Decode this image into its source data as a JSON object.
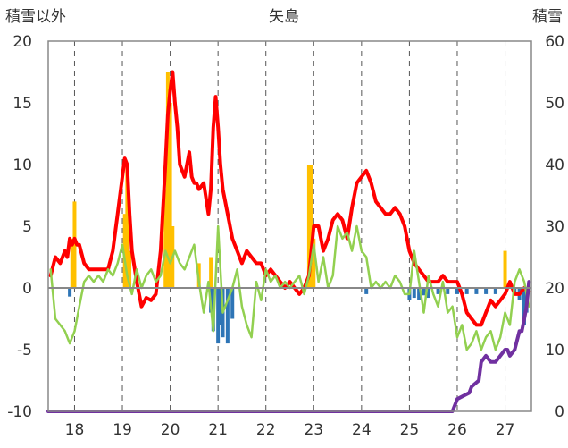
{
  "chart_data": {
    "type": "line",
    "title": "矢島",
    "left_axis_label": "積雪以外",
    "right_axis_label": "積雪",
    "x_ticks": [
      "18",
      "19",
      "20",
      "21",
      "22",
      "23",
      "24",
      "25",
      "26",
      "27"
    ],
    "x_tick_values": [
      18,
      19,
      20,
      21,
      22,
      23,
      24,
      25,
      26,
      27
    ],
    "xlim": [
      17.45,
      27.55
    ],
    "ylim_left": [
      -10,
      20
    ],
    "y_ticks_left": [
      "20",
      "15",
      "10",
      "5",
      "0",
      "-5",
      "-10"
    ],
    "ylim_right": [
      0,
      60
    ],
    "y_ticks_right": [
      "60",
      "50",
      "40",
      "30",
      "20",
      "10",
      "0"
    ],
    "grid": "vertical dashed",
    "series": [
      {
        "name": "",
        "kind": "bars",
        "color": "#FFC000",
        "axis": "left",
        "x": [
          17.95,
          18.0,
          19.05,
          19.1,
          19.15,
          19.9,
          19.95,
          20.0,
          20.05,
          20.6,
          20.85,
          22.9,
          22.95,
          23.0,
          27.0
        ],
        "values": [
          4.0,
          7.0,
          6.0,
          10.0,
          3.0,
          8.0,
          17.5,
          15.0,
          5.0,
          2.0,
          2.5,
          10.0,
          10.0,
          4.0,
          3.0
        ]
      },
      {
        "name": "",
        "kind": "bars",
        "color": "#2E75B6",
        "axis": "left",
        "x": [
          17.9,
          20.85,
          20.9,
          21.0,
          21.05,
          21.1,
          21.2,
          21.3,
          24.1,
          25.0,
          25.1,
          25.2,
          25.3,
          25.4,
          25.6,
          25.8,
          26.0,
          26.2,
          26.4,
          26.6,
          26.8,
          27.2,
          27.3,
          27.4,
          27.45
        ],
        "values": [
          -0.7,
          -2.0,
          -3.5,
          -4.5,
          -3.0,
          -4.0,
          -4.5,
          -2.5,
          -0.5,
          -1.0,
          -0.8,
          -1.0,
          -0.6,
          -0.8,
          -0.5,
          -0.5,
          -0.5,
          -0.5,
          -0.5,
          -0.5,
          -0.5,
          -0.6,
          -1.0,
          -3.0,
          -2.0
        ]
      },
      {
        "name": "",
        "kind": "line",
        "color": "#FF0000",
        "axis": "left",
        "x": [
          17.5,
          17.6,
          17.7,
          17.8,
          17.85,
          17.9,
          17.95,
          18.0,
          18.05,
          18.1,
          18.2,
          18.3,
          18.4,
          18.5,
          18.6,
          18.7,
          18.8,
          18.9,
          19.0,
          19.05,
          19.1,
          19.15,
          19.2,
          19.3,
          19.4,
          19.5,
          19.6,
          19.7,
          19.8,
          19.9,
          19.95,
          20.0,
          20.05,
          20.1,
          20.15,
          20.2,
          20.3,
          20.4,
          20.45,
          20.5,
          20.55,
          20.6,
          20.7,
          20.8,
          20.85,
          20.9,
          20.95,
          21.0,
          21.05,
          21.1,
          21.2,
          21.3,
          21.4,
          21.5,
          21.6,
          21.7,
          21.8,
          21.9,
          22.0,
          22.1,
          22.2,
          22.3,
          22.4,
          22.5,
          22.6,
          22.7,
          22.8,
          22.9,
          22.95,
          23.0,
          23.1,
          23.2,
          23.3,
          23.4,
          23.5,
          23.6,
          23.7,
          23.8,
          23.9,
          24.0,
          24.1,
          24.2,
          24.3,
          24.4,
          24.5,
          24.6,
          24.7,
          24.8,
          24.9,
          25.0,
          25.1,
          25.2,
          25.3,
          25.4,
          25.5,
          25.6,
          25.7,
          25.8,
          25.9,
          26.0,
          26.1,
          26.2,
          26.3,
          26.4,
          26.5,
          26.6,
          26.7,
          26.8,
          26.9,
          27.0,
          27.1,
          27.2,
          27.3,
          27.4,
          27.5
        ],
        "values": [
          1.0,
          2.5,
          2.0,
          3.0,
          2.5,
          4.0,
          3.5,
          4.0,
          3.5,
          3.5,
          2.0,
          1.5,
          1.5,
          1.5,
          1.5,
          1.5,
          3.0,
          6.0,
          9.0,
          10.5,
          10.0,
          6.0,
          3.0,
          0.5,
          -1.5,
          -0.8,
          -1.0,
          -0.5,
          3.0,
          10.0,
          14.0,
          16.0,
          17.5,
          15.0,
          13.0,
          10.0,
          9.0,
          11.0,
          9.0,
          8.5,
          8.5,
          8.0,
          8.5,
          6.0,
          8.0,
          13.0,
          15.5,
          13.0,
          10.0,
          8.0,
          6.0,
          4.0,
          3.0,
          2.0,
          3.0,
          2.5,
          2.0,
          2.0,
          1.0,
          1.5,
          1.0,
          0.5,
          0.0,
          0.5,
          0.0,
          -0.5,
          0.0,
          1.0,
          3.0,
          5.0,
          5.0,
          3.0,
          4.0,
          5.5,
          6.0,
          5.5,
          4.0,
          6.5,
          8.5,
          9.0,
          9.5,
          8.5,
          7.0,
          6.5,
          6.0,
          6.0,
          6.5,
          6.0,
          5.0,
          3.0,
          2.0,
          1.5,
          1.0,
          0.5,
          0.5,
          0.5,
          1.0,
          0.5,
          0.5,
          0.5,
          -0.5,
          -2.0,
          -2.5,
          -3.0,
          -3.0,
          -2.0,
          -1.0,
          -1.5,
          -1.0,
          -0.5,
          0.5,
          -0.5,
          -0.5,
          0.0,
          -0.3
        ]
      },
      {
        "name": "",
        "kind": "line",
        "color": "#92D050",
        "axis": "left",
        "x": [
          17.5,
          17.6,
          17.7,
          17.8,
          17.9,
          18.0,
          18.1,
          18.2,
          18.3,
          18.4,
          18.5,
          18.6,
          18.7,
          18.8,
          18.9,
          19.0,
          19.1,
          19.2,
          19.3,
          19.4,
          19.5,
          19.6,
          19.7,
          19.8,
          19.9,
          20.0,
          20.1,
          20.2,
          20.3,
          20.4,
          20.5,
          20.6,
          20.7,
          20.8,
          20.9,
          21.0,
          21.1,
          21.2,
          21.3,
          21.4,
          21.5,
          21.6,
          21.7,
          21.8,
          21.9,
          22.0,
          22.1,
          22.2,
          22.3,
          22.4,
          22.5,
          22.6,
          22.7,
          22.8,
          22.9,
          23.0,
          23.1,
          23.2,
          23.3,
          23.4,
          23.5,
          23.6,
          23.7,
          23.8,
          23.9,
          24.0,
          24.1,
          24.2,
          24.3,
          24.4,
          24.5,
          24.6,
          24.7,
          24.8,
          24.9,
          25.0,
          25.1,
          25.2,
          25.3,
          25.4,
          25.5,
          25.6,
          25.7,
          25.8,
          25.9,
          26.0,
          26.1,
          26.2,
          26.3,
          26.4,
          26.5,
          26.6,
          26.7,
          26.8,
          26.9,
          27.0,
          27.1,
          27.2,
          27.3,
          27.4,
          27.5
        ],
        "values": [
          1.5,
          -2.5,
          -3.0,
          -3.5,
          -4.5,
          -3.5,
          -1.5,
          0.5,
          1.0,
          0.5,
          1.0,
          0.5,
          1.5,
          1.0,
          2.0,
          3.5,
          1.0,
          -0.5,
          1.5,
          0.0,
          1.0,
          1.5,
          0.5,
          1.0,
          3.0,
          2.0,
          3.0,
          2.0,
          1.5,
          2.5,
          3.5,
          0.5,
          -2.0,
          0.5,
          -3.5,
          5.0,
          -2.0,
          -1.0,
          0.0,
          1.5,
          -1.5,
          -3.0,
          -4.0,
          0.5,
          -1.0,
          1.5,
          0.5,
          1.0,
          0.0,
          0.5,
          0.0,
          0.5,
          1.0,
          -0.5,
          1.0,
          3.5,
          0.5,
          2.5,
          0.0,
          1.0,
          5.0,
          4.0,
          4.5,
          3.0,
          5.0,
          3.0,
          2.5,
          0.0,
          0.5,
          0.0,
          0.5,
          0.0,
          1.0,
          0.5,
          -0.5,
          -0.5,
          3.0,
          0.5,
          -2.0,
          1.0,
          -0.5,
          -1.5,
          0.5,
          -2.0,
          -1.5,
          -4.0,
          -3.0,
          -5.0,
          -4.5,
          -3.5,
          -5.0,
          -4.0,
          -3.5,
          -5.0,
          -4.0,
          -2.0,
          -3.0,
          0.5,
          1.5,
          0.5,
          -1.5
        ]
      },
      {
        "name": "",
        "kind": "line",
        "color": "#7030A0",
        "axis": "right",
        "x": [
          17.45,
          25.9,
          25.95,
          26.0,
          26.25,
          26.3,
          26.45,
          26.5,
          26.6,
          26.7,
          26.8,
          26.9,
          27.0,
          27.05,
          27.1,
          27.2,
          27.3,
          27.35,
          27.4,
          27.45,
          27.5
        ],
        "values": [
          0,
          0,
          1,
          2,
          3,
          4,
          5,
          8,
          9,
          8,
          8,
          9,
          10,
          10,
          9,
          10,
          13,
          13,
          15,
          17,
          21
        ]
      }
    ]
  }
}
